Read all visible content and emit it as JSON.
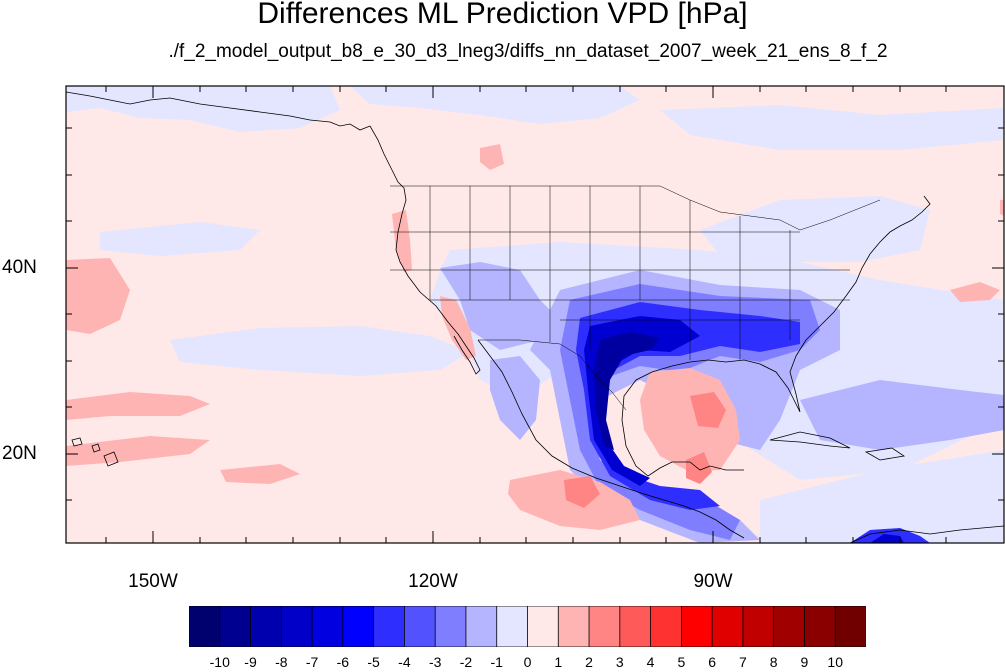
{
  "title": "Differences ML Prediction VPD [hPa]",
  "subtitle": "./f_2_model_output_b8_e_30_d3_lneg3/diffs_nn_dataset_2007_week_21_ens_8_f_2",
  "map": {
    "lon_range": [
      -160,
      -60
    ],
    "lat_range": [
      11,
      59
    ],
    "lat_ticks": [
      {
        "value": 40,
        "label": "40N"
      },
      {
        "value": 20,
        "label": "20N"
      }
    ],
    "lon_ticks": [
      {
        "value": -150,
        "label": "150W"
      },
      {
        "value": -120,
        "label": "120W"
      },
      {
        "value": -90,
        "label": "90W"
      }
    ]
  },
  "colorbar": {
    "labels": [
      "-10",
      "-9",
      "-8",
      "-7",
      "-6",
      "-5",
      "-4",
      "-3",
      "-2",
      "-1",
      "0",
      "1",
      "2",
      "3",
      "4",
      "5",
      "6",
      "7",
      "8",
      "9",
      "10"
    ],
    "colors": [
      "#00006e",
      "#000090",
      "#0000ae",
      "#0000c8",
      "#0000e0",
      "#0000ff",
      "#2e2eff",
      "#5252ff",
      "#7e7eff",
      "#b4b4ff",
      "#e4e6ff",
      "#ffe8e8",
      "#ffb4b4",
      "#ff8484",
      "#ff5a5a",
      "#ff3232",
      "#ff0000",
      "#e00000",
      "#c00000",
      "#a00000",
      "#8a0000",
      "#700000"
    ]
  },
  "colors": {
    "background_positive": "#ffe8e8",
    "near_zero_negative": "#e4e6ff",
    "strong_negative": "#0000ff",
    "positive": "#ffb4b4"
  }
}
